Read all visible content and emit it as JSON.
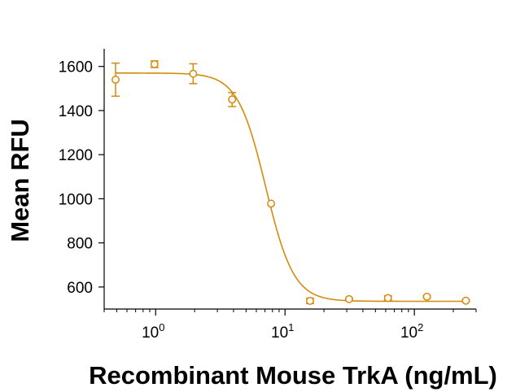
{
  "chart_data": {
    "type": "scatter",
    "title": "",
    "xlabel": "Recombinant Mouse TrkA (ng/mL)",
    "ylabel": "Mean RFU",
    "xscale": "log",
    "xlim": [
      0.4,
      300
    ],
    "ylim": [
      500,
      1680
    ],
    "x_ticks": [
      {
        "value": 1,
        "base": "10",
        "exp": "0"
      },
      {
        "value": 10,
        "base": "10",
        "exp": "1"
      },
      {
        "value": 100,
        "base": "10",
        "exp": "2"
      }
    ],
    "y_ticks": [
      {
        "value": 600,
        "label": "600"
      },
      {
        "value": 800,
        "label": "800"
      },
      {
        "value": 1000,
        "label": "1000"
      },
      {
        "value": 1200,
        "label": "1200"
      },
      {
        "value": 1400,
        "label": "1400"
      },
      {
        "value": 1600,
        "label": "1600"
      }
    ],
    "series": [
      {
        "name": "Mean RFU",
        "color": "#d68a0c",
        "marker": "open-circle",
        "points": [
          {
            "x": 0.49,
            "y": 1540,
            "err": 75
          },
          {
            "x": 0.98,
            "y": 1610,
            "err": 15
          },
          {
            "x": 1.95,
            "y": 1567,
            "err": 45
          },
          {
            "x": 3.9,
            "y": 1450,
            "err": 32
          },
          {
            "x": 7.8,
            "y": 978,
            "err": 0
          },
          {
            "x": 15.6,
            "y": 537,
            "err": 12
          },
          {
            "x": 31.25,
            "y": 545,
            "err": 5
          },
          {
            "x": 62.5,
            "y": 550,
            "err": 10
          },
          {
            "x": 125,
            "y": 556,
            "err": 5
          },
          {
            "x": 250,
            "y": 538,
            "err": 5
          }
        ],
        "fit": {
          "model": "4PL",
          "top": 1570,
          "bottom": 535,
          "ec50": 7.1,
          "hill": 4.0,
          "x_range": [
            0.49,
            250
          ]
        }
      }
    ]
  }
}
